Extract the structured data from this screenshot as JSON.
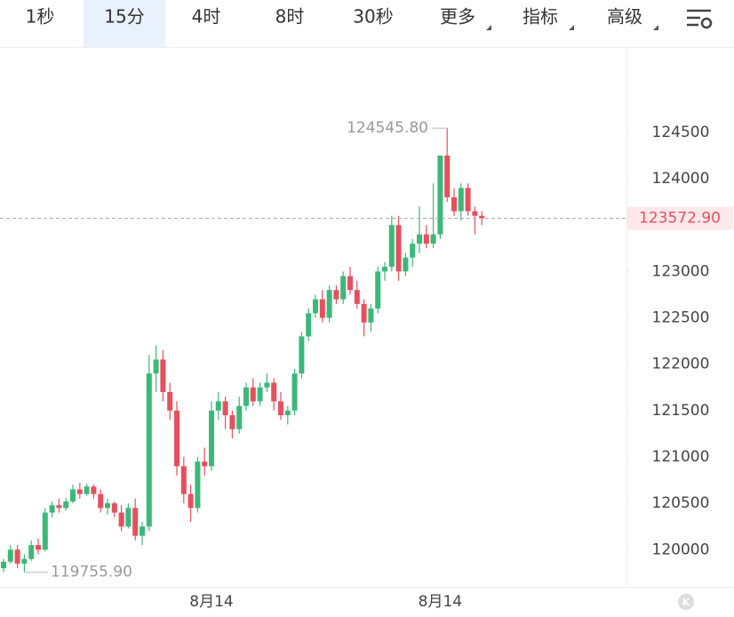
{
  "tabs": [
    "1秒",
    "15分",
    "4时",
    "8时",
    "30秒",
    "更多",
    "指标",
    "高级"
  ],
  "active_tab": 1,
  "logo_text": "K",
  "chart_data": {
    "type": "candlestick",
    "categories": [
      null,
      null,
      null,
      null,
      null,
      null,
      null,
      null,
      null,
      null,
      null,
      null,
      null,
      null,
      null,
      null,
      null,
      null,
      null,
      null,
      null,
      null,
      null,
      null,
      null,
      null,
      null,
      null,
      null,
      null,
      "8月14",
      null,
      null,
      null,
      null,
      null,
      null,
      null,
      null,
      null,
      null,
      null,
      null,
      null,
      null,
      null,
      null,
      null,
      null,
      null,
      null,
      null,
      null,
      null,
      null,
      null,
      null,
      null,
      null,
      null,
      null,
      null,
      null,
      "8月14",
      null,
      null,
      null,
      null,
      null,
      null
    ],
    "open": [
      119800,
      119870,
      120000,
      119850,
      119900,
      120050,
      120000,
      120400,
      120480,
      120450,
      120520,
      120650,
      120600,
      120680,
      120600,
      120450,
      120500,
      120400,
      120250,
      120450,
      120150,
      120250,
      121900,
      122050,
      121700,
      121500,
      120900,
      120600,
      120450,
      120950,
      120900,
      121500,
      121600,
      121450,
      121300,
      121550,
      121750,
      121600,
      121750,
      121800,
      121600,
      121450,
      121500,
      121900,
      122300,
      122550,
      122700,
      122500,
      122800,
      122700,
      122950,
      122800,
      122650,
      122450,
      122600,
      123000,
      123050,
      123500,
      123000,
      123150,
      123300,
      123400,
      123300,
      123400,
      124250,
      123800,
      123650,
      123900,
      123650,
      123600
    ],
    "high": [
      119900,
      120050,
      120050,
      119950,
      120100,
      120120,
      120450,
      120520,
      120550,
      120560,
      120700,
      120720,
      120710,
      120700,
      120650,
      120550,
      120520,
      120480,
      120500,
      120550,
      120300,
      122100,
      122200,
      122150,
      121800,
      121600,
      121000,
      120700,
      121000,
      121100,
      121600,
      121700,
      121650,
      121500,
      121650,
      121800,
      121850,
      121800,
      121900,
      121850,
      121700,
      121550,
      121950,
      122350,
      122600,
      122750,
      122800,
      122850,
      122850,
      123000,
      123050,
      122900,
      122700,
      122650,
      123050,
      123100,
      123600,
      123600,
      123200,
      123350,
      123700,
      123500,
      123950,
      124250,
      124545.8,
      123900,
      123950,
      123950,
      123700,
      123650
    ],
    "low": [
      119760,
      119850,
      119800,
      119755.9,
      119880,
      119950,
      119980,
      120350,
      120400,
      120420,
      120500,
      120550,
      120580,
      120550,
      120400,
      120380,
      120350,
      120200,
      120230,
      120100,
      120050,
      120200,
      121700,
      121600,
      121400,
      120800,
      120500,
      120300,
      120400,
      120800,
      120850,
      121400,
      121300,
      121200,
      121250,
      121500,
      121550,
      121550,
      121700,
      121500,
      121400,
      121350,
      121450,
      121850,
      122250,
      122500,
      122450,
      122450,
      122650,
      122650,
      122750,
      122600,
      122300,
      122350,
      122550,
      122900,
      123000,
      122900,
      122950,
      123050,
      123200,
      123250,
      123250,
      123350,
      123750,
      123600,
      123550,
      123600,
      123400,
      123500
    ],
    "close": [
      119870,
      120000,
      119850,
      119900,
      120050,
      120000,
      120400,
      120480,
      120450,
      120520,
      120650,
      120600,
      120680,
      120600,
      120450,
      120500,
      120400,
      120250,
      120450,
      120150,
      120250,
      121900,
      122050,
      121700,
      121500,
      120900,
      120600,
      120450,
      120950,
      120900,
      121500,
      121600,
      121450,
      121300,
      121550,
      121750,
      121600,
      121750,
      121800,
      121600,
      121450,
      121500,
      121900,
      122300,
      122550,
      122700,
      122500,
      122800,
      122700,
      122950,
      122800,
      122650,
      122450,
      122600,
      123000,
      123050,
      123500,
      123000,
      123150,
      123300,
      123400,
      123300,
      123400,
      124250,
      123800,
      123650,
      123900,
      123650,
      123600,
      123572.9
    ],
    "up_color": "#3cb878",
    "down_color": "#e5505e",
    "ylim": [
      119600,
      125400
    ],
    "yticks": [
      120000,
      120500,
      121000,
      121500,
      122000,
      122500,
      123000,
      123500,
      124000,
      124500
    ],
    "high_label": {
      "value": 124545.8,
      "label": "124545.80"
    },
    "low_label": {
      "value": 119755.9,
      "label": "119755.90"
    },
    "last_price": {
      "value": 123572.9,
      "label": "123572.90"
    }
  }
}
